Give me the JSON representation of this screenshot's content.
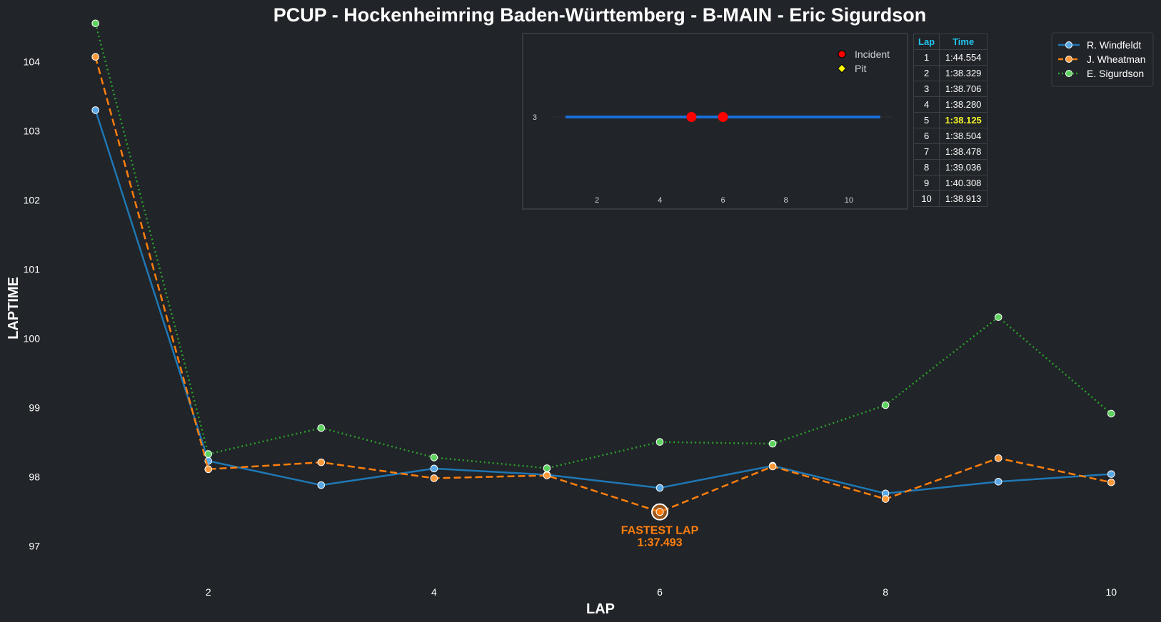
{
  "chart_data": [
    {
      "type": "line",
      "title": "PCUP - Hockenheimring Baden-Württemberg - B-MAIN - Eric Sigurdson",
      "xlabel": "LAP",
      "ylabel": "LAPTIME",
      "xlim": [
        0.85,
        10.15
      ],
      "ylim": [
        96.5,
        104.5
      ],
      "xticks": [
        2,
        4,
        6,
        8,
        10
      ],
      "yticks": [
        97,
        98,
        99,
        100,
        101,
        102,
        103,
        104
      ],
      "grid": false,
      "legend": "top-right",
      "x": [
        1,
        2,
        3,
        4,
        5,
        6,
        7,
        8,
        9,
        10
      ],
      "series": [
        {
          "name": "R. Windfeldt",
          "color": "#1f77b4",
          "style": "solid",
          "values": [
            103.3,
            98.23,
            97.88,
            98.12,
            98.03,
            97.84,
            98.16,
            97.76,
            97.93,
            98.04
          ]
        },
        {
          "name": "J. Wheatman",
          "color": "#ff7f0e",
          "style": "dashed",
          "values": [
            104.07,
            98.11,
            98.21,
            97.98,
            98.02,
            97.493,
            98.15,
            97.68,
            98.27,
            97.92
          ]
        },
        {
          "name": "E. Sigurdson",
          "color": "#2ca02c",
          "style": "dotted",
          "values": [
            104.554,
            98.329,
            98.706,
            98.28,
            98.125,
            98.504,
            98.478,
            99.036,
            100.308,
            98.913
          ]
        }
      ],
      "annotation": {
        "series": "J. Wheatman",
        "x": 6,
        "y": 97.493,
        "line1": "FASTEST LAP",
        "line2": "1:37.493",
        "color": "#ff7f0e"
      }
    },
    {
      "type": "line",
      "title": "",
      "xlim": [
        0.5,
        11.5
      ],
      "xticks": [
        2,
        4,
        6,
        8,
        10
      ],
      "ytick": "3",
      "line": {
        "x": [
          1,
          11
        ],
        "y": 3,
        "color": "#1a6fd9"
      },
      "incidents": [
        5,
        6
      ],
      "pits": [],
      "legend": [
        {
          "label": "Incident",
          "marker": "circle",
          "color": "#ff0000"
        },
        {
          "label": "Pit",
          "marker": "diamond",
          "color": "#ffff00"
        }
      ]
    }
  ],
  "lap_table": {
    "headers": [
      "Lap",
      "Time"
    ],
    "rows": [
      {
        "lap": "1",
        "time": "1:44.554"
      },
      {
        "lap": "2",
        "time": "1:38.329"
      },
      {
        "lap": "3",
        "time": "1:38.706"
      },
      {
        "lap": "4",
        "time": "1:38.280"
      },
      {
        "lap": "5",
        "time": "1:38.125",
        "best": true
      },
      {
        "lap": "6",
        "time": "1:38.504"
      },
      {
        "lap": "7",
        "time": "1:38.478"
      },
      {
        "lap": "8",
        "time": "1:39.036"
      },
      {
        "lap": "9",
        "time": "1:40.308"
      },
      {
        "lap": "10",
        "time": "1:38.913"
      }
    ]
  }
}
